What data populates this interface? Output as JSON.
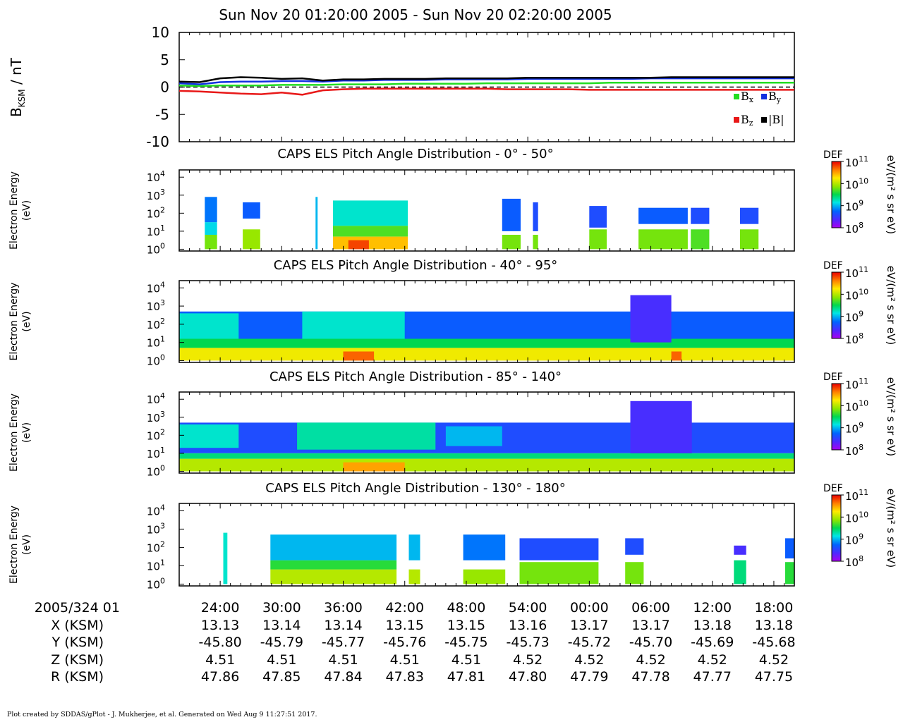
{
  "title": "Sun Nov 20 01:20:00 2005 - Sun Nov 20 02:20:00 2005",
  "footer": "Plot created by SDDAS/gPlot - J. Mukherjee, et al.  Generated on Wed Aug 9 11:27:51 2017.",
  "colors": {
    "bx": "#22dd22",
    "by": "#1030e0",
    "bz": "#e81818",
    "btot": "#000000"
  },
  "chart_data": [
    {
      "type": "line",
      "ylabel_main": "B",
      "ylabel_sub": "KSM",
      "ylabel_unit": " / nT",
      "ylim": [
        -10,
        10
      ],
      "yticks": [
        "10",
        "5",
        "0",
        "-5",
        "-10"
      ],
      "xlim_minutes": [
        0,
        60
      ],
      "x_minutes": [
        0,
        2,
        4,
        6,
        8,
        10,
        12,
        14,
        16,
        18,
        20,
        22,
        24,
        26,
        28,
        30,
        32,
        34,
        36,
        38,
        40,
        42,
        44,
        46,
        48,
        50,
        52,
        54,
        56,
        58,
        60
      ],
      "legend": [
        {
          "label": "B",
          "sub": "x",
          "series": "bx"
        },
        {
          "label": "B",
          "sub": "y",
          "series": "by"
        },
        {
          "label": "B",
          "sub": "z",
          "series": "bz"
        },
        {
          "label": "|B|",
          "sub": "",
          "series": "btot"
        }
      ],
      "series": [
        {
          "key": "bx",
          "values": [
            0.3,
            0.2,
            0.3,
            0.3,
            0.3,
            0.4,
            0.4,
            0.4,
            0.5,
            0.5,
            0.5,
            0.6,
            0.6,
            0.6,
            0.6,
            0.7,
            0.7,
            0.7,
            0.7,
            0.7,
            0.7,
            0.8,
            0.8,
            0.8,
            0.8,
            0.8,
            0.8,
            0.8,
            0.8,
            0.8,
            0.8
          ]
        },
        {
          "key": "by",
          "values": [
            0.7,
            0.5,
            0.9,
            1.0,
            1.0,
            1.1,
            1.1,
            1.0,
            1.2,
            1.2,
            1.3,
            1.3,
            1.3,
            1.4,
            1.4,
            1.4,
            1.4,
            1.5,
            1.5,
            1.5,
            1.5,
            1.5,
            1.5,
            1.6,
            1.6,
            1.6,
            1.6,
            1.6,
            1.6,
            1.6,
            1.6
          ]
        },
        {
          "key": "bz",
          "values": [
            -0.7,
            -0.8,
            -1.0,
            -1.2,
            -1.3,
            -1.0,
            -1.4,
            -0.6,
            -0.4,
            -0.3,
            -0.3,
            -0.3,
            -0.3,
            -0.3,
            -0.3,
            -0.3,
            -0.4,
            -0.4,
            -0.4,
            -0.4,
            -0.5,
            -0.5,
            -0.5,
            -0.5,
            -0.5,
            -0.5,
            -0.5,
            -0.5,
            -0.5,
            -0.5,
            -0.5
          ]
        },
        {
          "key": "btot",
          "values": [
            1.0,
            0.9,
            1.6,
            1.8,
            1.7,
            1.5,
            1.6,
            1.2,
            1.4,
            1.4,
            1.5,
            1.5,
            1.5,
            1.6,
            1.6,
            1.6,
            1.6,
            1.7,
            1.7,
            1.7,
            1.7,
            1.7,
            1.7,
            1.7,
            1.8,
            1.8,
            1.8,
            1.8,
            1.8,
            1.8,
            1.8
          ]
        }
      ]
    },
    {
      "type": "heatmap",
      "title": "CAPS ELS Pitch Angle Distribution - 0° - 50°",
      "ylabel": [
        "Electron Energy",
        "(eV)"
      ],
      "ylim_log10_eV": [
        -0.1,
        4.4
      ],
      "yticks_exp": [
        "4",
        "3",
        "2",
        "1",
        "0"
      ],
      "colorbar_label": "DEF",
      "colorbar_unit": "eV/(m² s sr eV)",
      "colorbar_ticks_exp": [
        "11",
        "10",
        "9",
        "8"
      ],
      "colorbar_range_log10": [
        8,
        11
      ],
      "blocks_minutes_log10E_level": [
        [
          2.5,
          3.7,
          0,
          0.8,
          9.8
        ],
        [
          2.5,
          3.7,
          0.8,
          1.5,
          9.1
        ],
        [
          2.5,
          3.7,
          1.5,
          2.9,
          8.8
        ],
        [
          6.2,
          7.9,
          0,
          1.1,
          9.9
        ],
        [
          6.2,
          7.9,
          1.7,
          2.6,
          8.7
        ],
        [
          13.3,
          13.5,
          0,
          2.9,
          9.0
        ],
        [
          15.0,
          22.3,
          0,
          0.7,
          10.4
        ],
        [
          15.0,
          22.3,
          0.7,
          1.3,
          9.7
        ],
        [
          15.0,
          22.3,
          1.3,
          2.7,
          9.2
        ],
        [
          16.5,
          18.5,
          0,
          0.5,
          10.8
        ],
        [
          31.5,
          33.3,
          0,
          0.8,
          9.8
        ],
        [
          31.5,
          33.3,
          1.0,
          2.8,
          8.7
        ],
        [
          34.5,
          35.0,
          0,
          0.8,
          9.8
        ],
        [
          34.5,
          35.0,
          1.0,
          2.6,
          8.6
        ],
        [
          40.0,
          41.7,
          0,
          1.1,
          9.8
        ],
        [
          40.0,
          41.7,
          1.2,
          2.4,
          8.6
        ],
        [
          44.8,
          49.6,
          0,
          1.1,
          9.8
        ],
        [
          44.8,
          49.6,
          1.4,
          2.3,
          8.7
        ],
        [
          49.9,
          51.7,
          0,
          1.1,
          9.7
        ],
        [
          49.9,
          51.7,
          1.4,
          2.3,
          8.6
        ],
        [
          54.7,
          56.5,
          0,
          1.1,
          9.8
        ],
        [
          54.7,
          56.5,
          1.4,
          2.3,
          8.6
        ]
      ]
    },
    {
      "type": "heatmap",
      "title": "CAPS ELS Pitch Angle Distribution - 40° - 95°",
      "ylabel": [
        "Electron Energy",
        "(eV)"
      ],
      "ylim_log10_eV": [
        -0.1,
        4.4
      ],
      "yticks_exp": [
        "4",
        "3",
        "2",
        "1",
        "0"
      ],
      "colorbar_label": "DEF",
      "colorbar_unit": "eV/(m² s sr eV)",
      "colorbar_ticks_exp": [
        "11",
        "10",
        "9",
        "8"
      ],
      "colorbar_range_log10": [
        8,
        11
      ],
      "blocks_minutes_log10E_level": [
        [
          0,
          60,
          0,
          0.7,
          10.2
        ],
        [
          0,
          60,
          0.7,
          1.2,
          9.5
        ],
        [
          0,
          60,
          1.2,
          2.7,
          8.7
        ],
        [
          0,
          5.8,
          1.2,
          2.6,
          9.2
        ],
        [
          12,
          22,
          1.2,
          2.7,
          9.2
        ],
        [
          16,
          19,
          0,
          0.5,
          10.7
        ],
        [
          48,
          49,
          0,
          0.5,
          10.7
        ],
        [
          44,
          48,
          1.0,
          3.6,
          8.4
        ]
      ]
    },
    {
      "type": "heatmap",
      "title": "CAPS ELS Pitch Angle Distribution - 85° - 140°",
      "ylabel": [
        "Electron Energy",
        "(eV)"
      ],
      "ylim_log10_eV": [
        -0.1,
        4.4
      ],
      "yticks_exp": [
        "4",
        "3",
        "2",
        "1",
        "0"
      ],
      "colorbar_label": "DEF",
      "colorbar_unit": "eV/(m² s sr eV)",
      "colorbar_ticks_exp": [
        "11",
        "10",
        "9",
        "8"
      ],
      "colorbar_range_log10": [
        8,
        11
      ],
      "blocks_minutes_log10E_level": [
        [
          0,
          60,
          0,
          0.7,
          10.0
        ],
        [
          0,
          60,
          0.7,
          1.0,
          9.4
        ],
        [
          0,
          60,
          1.0,
          2.7,
          8.6
        ],
        [
          0,
          5.8,
          1.3,
          2.6,
          9.2
        ],
        [
          11.5,
          25,
          1.2,
          2.7,
          9.3
        ],
        [
          26,
          31.5,
          1.4,
          2.5,
          9.0
        ],
        [
          16,
          22,
          0,
          0.5,
          10.5
        ],
        [
          44,
          50,
          1.0,
          3.9,
          8.4
        ]
      ]
    },
    {
      "type": "heatmap",
      "title": "CAPS ELS Pitch Angle Distribution - 130° - 180°",
      "ylabel": [
        "Electron Energy",
        "(eV)"
      ],
      "ylim_log10_eV": [
        -0.1,
        4.4
      ],
      "yticks_exp": [
        "4",
        "3",
        "2",
        "1",
        "0"
      ],
      "colorbar_label": "DEF",
      "colorbar_unit": "eV/(m² s sr eV)",
      "colorbar_ticks_exp": [
        "11",
        "10",
        "9",
        "8"
      ],
      "colorbar_range_log10": [
        8,
        11
      ],
      "blocks_minutes_log10E_level": [
        [
          4.3,
          4.7,
          0,
          2.8,
          9.2
        ],
        [
          8.9,
          21.2,
          0,
          0.8,
          10.0
        ],
        [
          8.9,
          21.2,
          0.8,
          1.3,
          9.6
        ],
        [
          8.9,
          21.2,
          1.3,
          2.7,
          9.0
        ],
        [
          22.4,
          23.5,
          0,
          0.8,
          10.0
        ],
        [
          22.4,
          23.5,
          1.3,
          2.7,
          9.0
        ],
        [
          27.7,
          31.8,
          0,
          0.8,
          9.9
        ],
        [
          27.7,
          31.8,
          1.3,
          2.7,
          8.8
        ],
        [
          33.2,
          40.9,
          0,
          1.2,
          9.8
        ],
        [
          33.2,
          40.9,
          1.3,
          2.5,
          8.6
        ],
        [
          43.5,
          45.3,
          0,
          1.2,
          9.8
        ],
        [
          43.5,
          45.3,
          1.6,
          2.5,
          8.6
        ],
        [
          54.1,
          55.3,
          0,
          1.3,
          9.4
        ],
        [
          54.1,
          55.3,
          1.6,
          2.1,
          8.4
        ],
        [
          59.1,
          60,
          0,
          1.2,
          9.6
        ],
        [
          59.1,
          60,
          1.4,
          2.5,
          8.7
        ]
      ]
    }
  ],
  "x_axis": {
    "start_label": "2005/324 01",
    "row_labels": [
      "X (KSM)",
      "Y (KSM)",
      "Z (KSM)",
      "R (KSM)"
    ],
    "ticks": [
      {
        "minute": 4,
        "time": "24:00",
        "x": "13.13",
        "y": "-45.80",
        "z": "4.51",
        "r": "47.86"
      },
      {
        "minute": 10,
        "time": "30:00",
        "x": "13.14",
        "y": "-45.79",
        "z": "4.51",
        "r": "47.85"
      },
      {
        "minute": 16,
        "time": "36:00",
        "x": "13.14",
        "y": "-45.77",
        "z": "4.51",
        "r": "47.84"
      },
      {
        "minute": 22,
        "time": "42:00",
        "x": "13.15",
        "y": "-45.76",
        "z": "4.51",
        "r": "47.83"
      },
      {
        "minute": 28,
        "time": "48:00",
        "x": "13.15",
        "y": "-45.75",
        "z": "4.51",
        "r": "47.81"
      },
      {
        "minute": 34,
        "time": "54:00",
        "x": "13.16",
        "y": "-45.73",
        "z": "4.52",
        "r": "47.80"
      },
      {
        "minute": 40,
        "time": "00:00",
        "x": "13.17",
        "y": "-45.72",
        "z": "4.52",
        "r": "47.79"
      },
      {
        "minute": 46,
        "time": "06:00",
        "x": "13.17",
        "y": "-45.70",
        "z": "4.52",
        "r": "47.78"
      },
      {
        "minute": 52,
        "time": "12:00",
        "x": "13.18",
        "y": "-45.69",
        "z": "4.52",
        "r": "47.77"
      },
      {
        "minute": 58,
        "time": "18:00",
        "x": "13.18",
        "y": "-45.68",
        "z": "4.52",
        "r": "47.75"
      }
    ]
  }
}
